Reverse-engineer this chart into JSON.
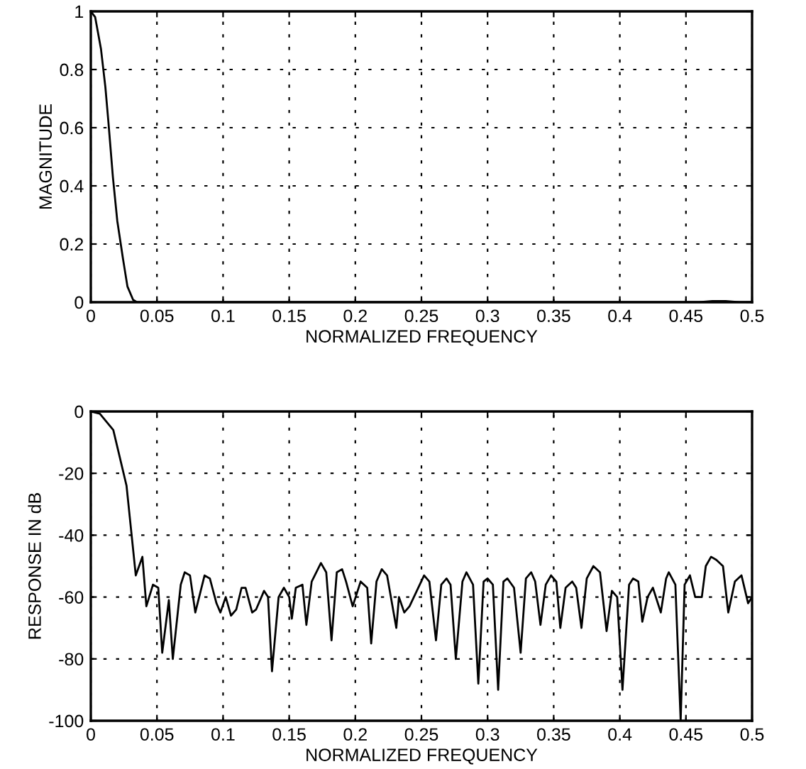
{
  "chart_data": [
    {
      "type": "line",
      "xlabel": "NORMALIZED FREQUENCY",
      "ylabel": "MAGNITUDE",
      "xlim": [
        0,
        0.5
      ],
      "ylim": [
        0,
        1
      ],
      "xticks": [
        0,
        0.05,
        0.1,
        0.15,
        0.2,
        0.25,
        0.3,
        0.35,
        0.4,
        0.45,
        0.5
      ],
      "yticks": [
        0,
        0.2,
        0.4,
        0.6,
        0.8,
        1
      ],
      "grid": true,
      "line_style": "solid",
      "marker": "none",
      "series": [
        {
          "color": "#000000",
          "x": [
            0,
            0.0033,
            0.0077,
            0.011,
            0.0133,
            0.0167,
            0.02,
            0.0243,
            0.0277,
            0.032,
            0.035,
            0.1,
            0.2,
            0.3,
            0.4,
            0.46,
            0.47,
            0.48,
            0.49,
            0.5
          ],
          "values": [
            1,
            0.98,
            0.87,
            0.74,
            0.62,
            0.43,
            0.28,
            0.15,
            0.054,
            0.008,
            0,
            0,
            0,
            0,
            0,
            0,
            0.004,
            0.004,
            0,
            0
          ]
        }
      ]
    },
    {
      "type": "line",
      "xlabel": "NORMALIZED FREQUENCY",
      "ylabel": "RESPONSE IN dB",
      "xlim": [
        0,
        0.5
      ],
      "ylim": [
        -100,
        0
      ],
      "xticks": [
        0,
        0.05,
        0.1,
        0.15,
        0.2,
        0.25,
        0.3,
        0.35,
        0.4,
        0.45,
        0.5
      ],
      "yticks": [
        -100,
        -80,
        -60,
        -40,
        -20,
        0
      ],
      "grid": true,
      "line_style": "solid",
      "marker": "none",
      "series": [
        {
          "color": "#000000",
          "x": [
            0,
            0.0068,
            0.017,
            0.027,
            0.034,
            0.039,
            0.042,
            0.047,
            0.051,
            0.054,
            0.059,
            0.062,
            0.068,
            0.071,
            0.075,
            0.079,
            0.086,
            0.09,
            0.095,
            0.098,
            0.102,
            0.106,
            0.11,
            0.114,
            0.117,
            0.122,
            0.125,
            0.131,
            0.134,
            0.137,
            0.142,
            0.146,
            0.15,
            0.152,
            0.155,
            0.16,
            0.163,
            0.167,
            0.174,
            0.178,
            0.182,
            0.186,
            0.19,
            0.193,
            0.198,
            0.204,
            0.209,
            0.212,
            0.216,
            0.22,
            0.224,
            0.231,
            0.233,
            0.237,
            0.241,
            0.252,
            0.256,
            0.261,
            0.265,
            0.269,
            0.272,
            0.276,
            0.281,
            0.284,
            0.289,
            0.293,
            0.297,
            0.3,
            0.304,
            0.308,
            0.312,
            0.315,
            0.32,
            0.325,
            0.329,
            0.333,
            0.336,
            0.34,
            0.344,
            0.348,
            0.352,
            0.355,
            0.359,
            0.364,
            0.367,
            0.371,
            0.375,
            0.38,
            0.385,
            0.39,
            0.394,
            0.398,
            0.402,
            0.407,
            0.41,
            0.414,
            0.417,
            0.421,
            0.425,
            0.431,
            0.435,
            0.437,
            0.442,
            0.446,
            0.449,
            0.453,
            0.457,
            0.462,
            0.465,
            0.469,
            0.473,
            0.478,
            0.482,
            0.487,
            0.492,
            0.497,
            0.5
          ],
          "values": [
            0,
            -0.7,
            -6,
            -24,
            -53,
            -47,
            -63,
            -56,
            -57,
            -78,
            -61,
            -80,
            -56,
            -52,
            -53,
            -65,
            -53,
            -54,
            -62,
            -65,
            -60,
            -66,
            -64,
            -57,
            -57,
            -65,
            -64,
            -58,
            -60,
            -84,
            -60,
            -57,
            -60,
            -67,
            -57,
            -56,
            -69,
            -55,
            -49,
            -52,
            -74,
            -52,
            -51,
            -55,
            -63,
            -55,
            -57,
            -75,
            -55,
            -51,
            -53,
            -70,
            -60,
            -65,
            -63,
            -53,
            -55,
            -74,
            -56,
            -54,
            -56,
            -80,
            -55,
            -52,
            -56,
            -88,
            -55,
            -54,
            -56,
            -90,
            -55,
            -54,
            -57,
            -78,
            -54,
            -52,
            -55,
            -69,
            -56,
            -53,
            -55,
            -70,
            -57,
            -55,
            -57,
            -70,
            -54,
            -50,
            -52,
            -71,
            -58,
            -60,
            -90,
            -56,
            -54,
            -55,
            -68,
            -60,
            -57,
            -65,
            -54,
            -52,
            -56,
            -100,
            -56,
            -53,
            -60,
            -60,
            -50,
            -47,
            -48,
            -50,
            -65,
            -55,
            -53,
            -62,
            -60
          ]
        }
      ]
    }
  ]
}
